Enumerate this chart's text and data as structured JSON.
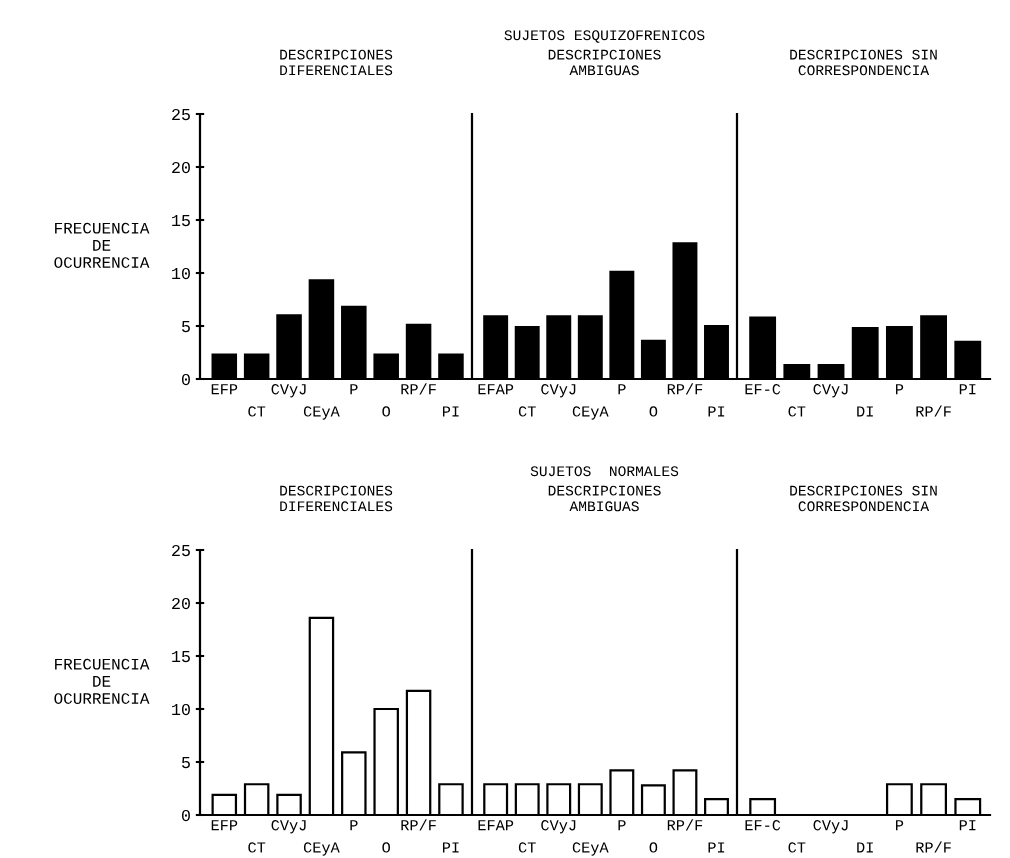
{
  "chart_data": [
    {
      "type": "bar",
      "title": "DESCRIPCIONES\nDIFERENCIALES",
      "ylabel": "FRECUENCIA\nDE\nOCURRENCIA",
      "categories": [
        "EFP",
        "CT",
        "CVyJ",
        "CEyA",
        "P",
        "O",
        "RP/F",
        "PI"
      ],
      "values": [
        2.3,
        2.3,
        6,
        9.3,
        6.8,
        2.3,
        5.1,
        2.3
      ],
      "color": "#000000",
      "ylim": [
        0,
        25
      ],
      "yticks": [
        0,
        5,
        10,
        15,
        20,
        25
      ],
      "grid": false,
      "legend": false
    },
    {
      "type": "bar",
      "title": "DESCRIPCIONES\nAMBIGUAS",
      "annotations": [
        "SUJETOS ESQUIZOFRENICOS"
      ],
      "categories": [
        "EFAP",
        "CT",
        "CVyJ",
        "CEyA",
        "P",
        "O",
        "RP/F",
        "PI"
      ],
      "values": [
        5.9,
        4.9,
        5.9,
        5.9,
        10.1,
        3.6,
        12.8,
        5
      ],
      "color": "#000000",
      "ylim": [
        0,
        25
      ],
      "tick_labels": "x",
      "grid": false,
      "legend": false
    },
    {
      "type": "bar",
      "title": "DESCRIPCIONES SIN\nCORRESPONDENCIA",
      "categories": [
        "EF-C",
        "CT",
        "CVyJ",
        "DI",
        "P",
        "RP/F",
        "PI"
      ],
      "values": [
        5.8,
        1.3,
        1.3,
        4.8,
        4.9,
        5.9,
        3.5
      ],
      "color": "#000000",
      "ylim": [
        0,
        25
      ],
      "tick_labels": "x",
      "grid": false,
      "legend": false
    },
    {
      "type": "bar",
      "title": "DESCRIPCIONES\nDIFERENCIALES",
      "ylabel": "FRECUENCIA\nDE\nOCURRENCIA",
      "categories": [
        "EFP",
        "CT",
        "CVyJ",
        "CEyA",
        "P",
        "O",
        "RP/F",
        "PI"
      ],
      "values": [
        1.9,
        2.9,
        1.9,
        18.6,
        5.9,
        10,
        11.7,
        2.9
      ],
      "color": "#ffffff",
      "ylim": [
        0,
        25
      ],
      "yticks": [
        0,
        5,
        10,
        15,
        20,
        25
      ],
      "grid": false,
      "legend": false
    },
    {
      "type": "bar",
      "title": "DESCRIPCIONES\nAMBIGUAS",
      "annotations": [
        "SUJETOS  NORMALES"
      ],
      "categories": [
        "EFAP",
        "CT",
        "CVyJ",
        "CEyA",
        "P",
        "O",
        "RP/F",
        "PI"
      ],
      "values": [
        2.9,
        2.9,
        2.9,
        2.9,
        4.2,
        2.8,
        4.2,
        1.5
      ],
      "color": "#ffffff",
      "ylim": [
        0,
        25
      ],
      "tick_labels": "x",
      "grid": false,
      "legend": false
    },
    {
      "type": "bar",
      "title": "DESCRIPCIONES SIN\nCORRESPONDENCIA",
      "categories": [
        "EF-C",
        "CT",
        "CVyJ",
        "DI",
        "P",
        "RP/F",
        "PI"
      ],
      "values": [
        1.5,
        0,
        0,
        0,
        2.9,
        2.9,
        1.5
      ],
      "color": "#ffffff",
      "ylim": [
        0,
        25
      ],
      "tick_labels": "x",
      "grid": false,
      "legend": false
    }
  ]
}
